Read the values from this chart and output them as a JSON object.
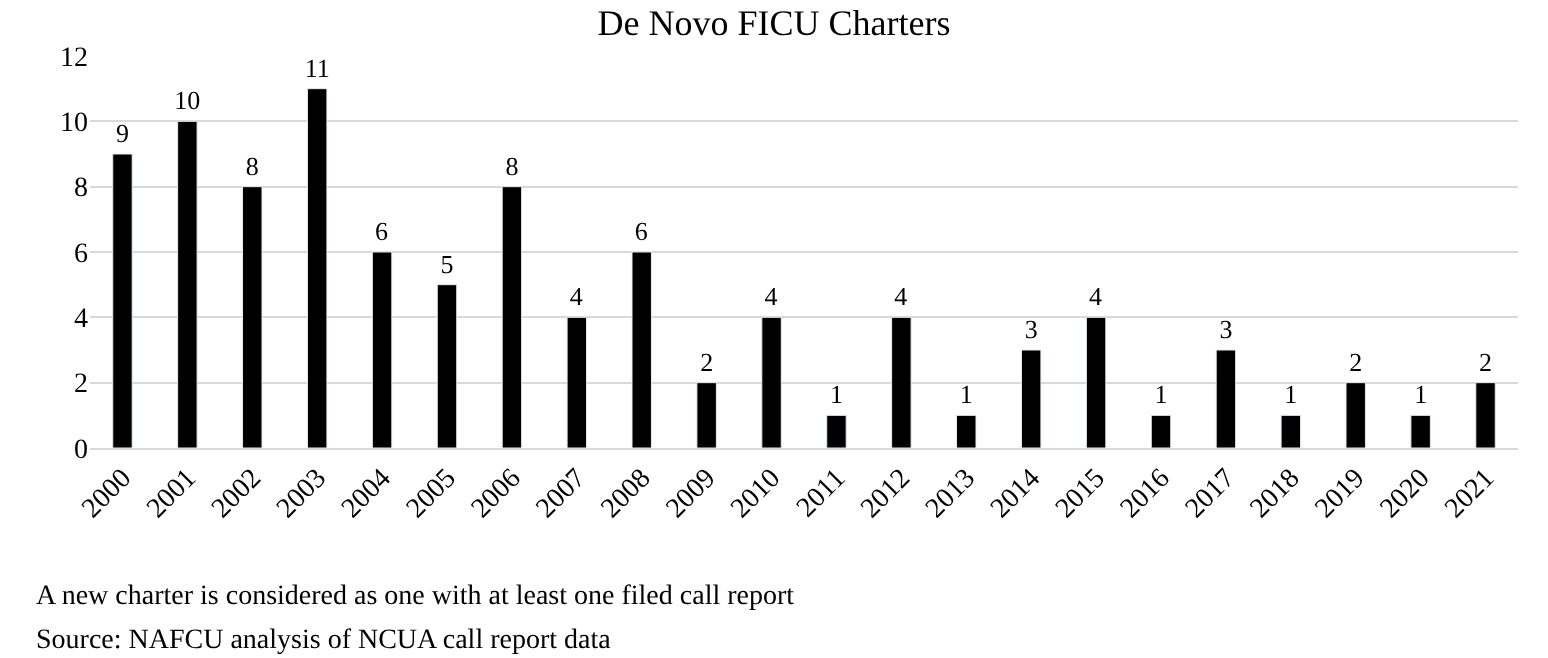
{
  "chart_data": {
    "type": "bar",
    "title": "De Novo FICU Charters",
    "categories": [
      "2000",
      "2001",
      "2002",
      "2003",
      "2004",
      "2005",
      "2006",
      "2007",
      "2008",
      "2009",
      "2010",
      "2011",
      "2012",
      "2013",
      "2014",
      "2015",
      "2016",
      "2017",
      "2018",
      "2019",
      "2020",
      "2021"
    ],
    "values": [
      9,
      10,
      8,
      11,
      6,
      5,
      8,
      4,
      6,
      2,
      4,
      1,
      4,
      1,
      3,
      4,
      1,
      3,
      1,
      2,
      1,
      2
    ],
    "color": "#000000",
    "data_labels": true,
    "ylim": [
      0,
      12
    ],
    "yticks": [
      0,
      2,
      4,
      6,
      8,
      10,
      12
    ],
    "grid": "y",
    "annotations": [
      "A new charter is considered as one with at least one filed call report",
      "Source: NAFCU analysis of NCUA call report data"
    ]
  }
}
